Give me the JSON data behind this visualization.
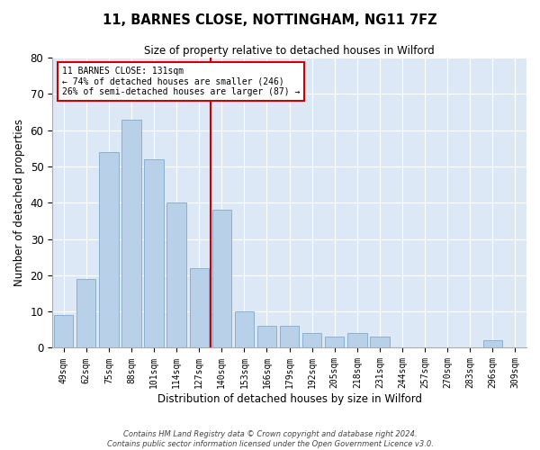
{
  "title": "11, BARNES CLOSE, NOTTINGHAM, NG11 7FZ",
  "subtitle": "Size of property relative to detached houses in Wilford",
  "xlabel": "Distribution of detached houses by size in Wilford",
  "ylabel": "Number of detached properties",
  "bar_labels": [
    "49sqm",
    "62sqm",
    "75sqm",
    "88sqm",
    "101sqm",
    "114sqm",
    "127sqm",
    "140sqm",
    "153sqm",
    "166sqm",
    "179sqm",
    "192sqm",
    "205sqm",
    "218sqm",
    "231sqm",
    "244sqm",
    "257sqm",
    "270sqm",
    "283sqm",
    "296sqm",
    "309sqm"
  ],
  "bar_values": [
    9,
    19,
    54,
    63,
    52,
    40,
    22,
    38,
    10,
    6,
    6,
    4,
    3,
    4,
    3,
    0,
    0,
    0,
    0,
    2,
    0
  ],
  "bar_color": "#b8d0e8",
  "bar_edge_color": "#8ab0d0",
  "background_color": "#dce8f5",
  "ylim": [
    0,
    80
  ],
  "yticks": [
    0,
    10,
    20,
    30,
    40,
    50,
    60,
    70,
    80
  ],
  "vline_x": 6.5,
  "vline_color": "#cc0000",
  "annotation_text": "11 BARNES CLOSE: 131sqm\n← 74% of detached houses are smaller (246)\n26% of semi-detached houses are larger (87) →",
  "annotation_box_color": "#ffffff",
  "annotation_box_edge": "#cc0000",
  "footer_line1": "Contains HM Land Registry data © Crown copyright and database right 2024.",
  "footer_line2": "Contains public sector information licensed under the Open Government Licence v3.0."
}
